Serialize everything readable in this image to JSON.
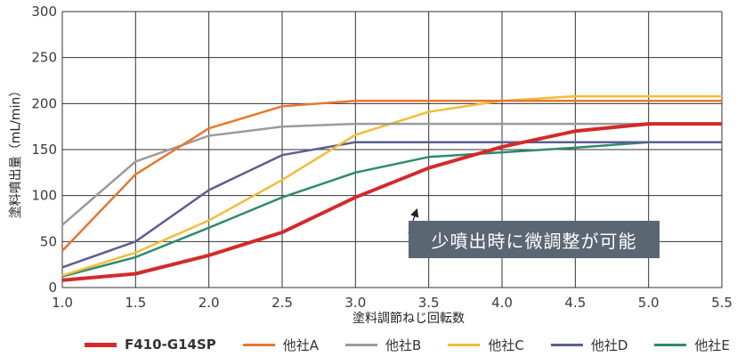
{
  "chart_data": {
    "type": "line",
    "title": "",
    "xlabel": "塗料調節ねじ回転数",
    "ylabel": "塗料噴出量（mL/min）",
    "xlim": [
      1.0,
      5.5
    ],
    "ylim": [
      0,
      300
    ],
    "x": [
      1.0,
      1.5,
      2.0,
      2.5,
      3.0,
      3.5,
      4.0,
      4.5,
      5.0,
      5.5
    ],
    "xticks": [
      "1.0",
      "1.5",
      "2.0",
      "2.5",
      "3.0",
      "3.5",
      "4.0",
      "4.5",
      "5.0",
      "5.5"
    ],
    "yticks": [
      "0",
      "50",
      "100",
      "150",
      "200",
      "250",
      "300"
    ],
    "grid": true,
    "legend_position": "bottom",
    "series": [
      {
        "name": "F410-G14SP",
        "color": "#d42a2a",
        "values": [
          8,
          15,
          35,
          60,
          98,
          130,
          153,
          170,
          178,
          178
        ]
      },
      {
        "name": "他社A",
        "color": "#e8772e",
        "values": [
          40,
          123,
          173,
          197,
          203,
          203,
          203,
          203,
          203,
          203
        ]
      },
      {
        "name": "他社B",
        "color": "#9b9b9b",
        "values": [
          68,
          137,
          165,
          175,
          178,
          178,
          178,
          178,
          178,
          178
        ]
      },
      {
        "name": "他社C",
        "color": "#f2bd3a",
        "values": [
          13,
          38,
          73,
          117,
          166,
          191,
          203,
          208,
          208,
          208
        ]
      },
      {
        "name": "他社D",
        "color": "#5b5f8f",
        "values": [
          22,
          50,
          106,
          144,
          158,
          158,
          158,
          158,
          158,
          158
        ]
      },
      {
        "name": "他社E",
        "color": "#2e8b6e",
        "values": [
          12,
          33,
          65,
          98,
          125,
          142,
          147,
          152,
          158,
          158
        ]
      }
    ],
    "annotation": {
      "text": "少噴出時に微調整が可能",
      "x": 3.42,
      "y": 85
    }
  }
}
